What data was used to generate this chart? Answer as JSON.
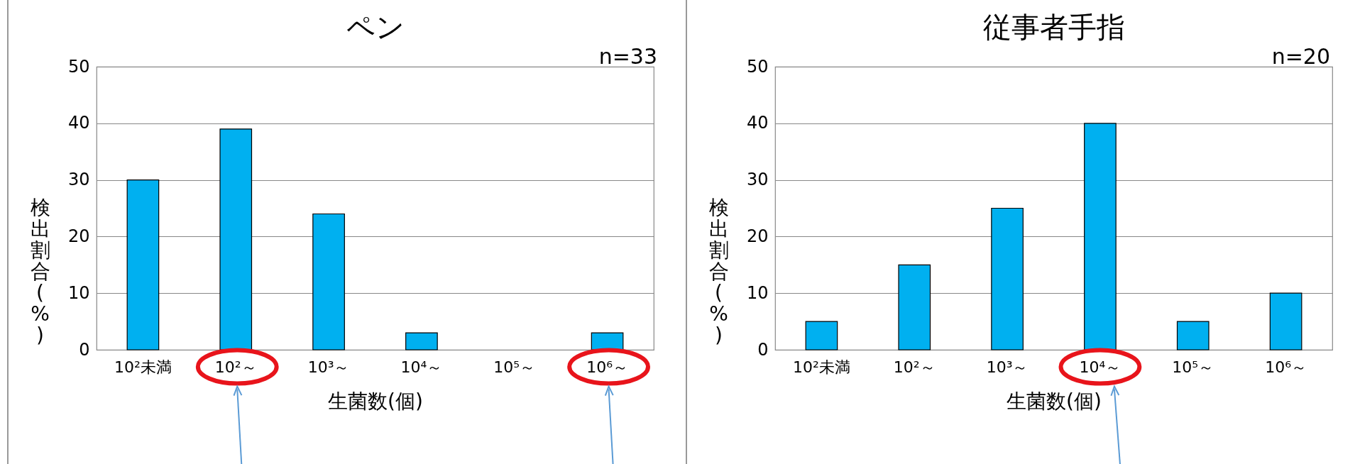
{
  "chart_data": [
    {
      "type": "bar",
      "title": "ペン",
      "annotations": [
        "n=33"
      ],
      "xlabel": "生菌数(個)",
      "ylabel": "検出割合(%)",
      "categories": [
        "10²未満",
        "10²～",
        "10³～",
        "10⁴～",
        "10⁵～",
        "10⁶～"
      ],
      "values": [
        30,
        39,
        24,
        3,
        0,
        3
      ],
      "color": "#00b0f0",
      "ylim": [
        0,
        50
      ],
      "yticks": [
        0,
        10,
        20,
        30,
        40,
        50
      ],
      "grid": "y"
    },
    {
      "type": "bar",
      "title": "従事者手指",
      "annotations": [
        "n=20"
      ],
      "xlabel": "生菌数(個)",
      "ylabel": "検出割合(%)",
      "categories": [
        "10²未満",
        "10²～",
        "10³～",
        "10⁴～",
        "10⁵～",
        "10⁶～"
      ],
      "values": [
        5,
        15,
        25,
        40,
        5,
        10
      ],
      "color": "#00b0f0",
      "ylim": [
        0,
        50
      ],
      "yticks": [
        0,
        10,
        20,
        30,
        40,
        50
      ],
      "grid": "y"
    }
  ]
}
